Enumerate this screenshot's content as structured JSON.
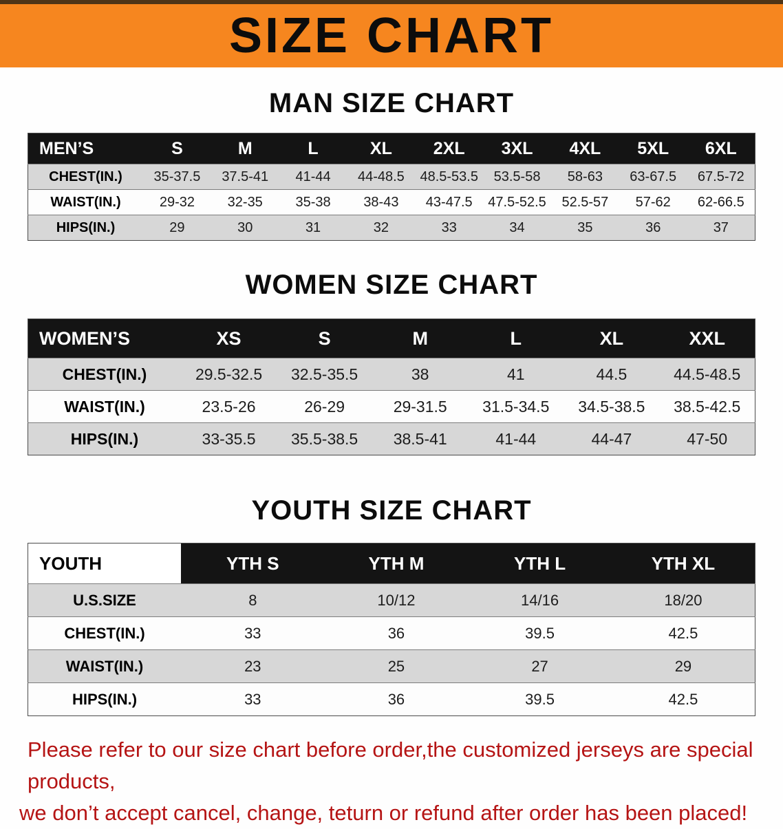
{
  "banner": {
    "title": "SIZE CHART",
    "bg_color": "#f6861f"
  },
  "sections": [
    {
      "heading": "MAN SIZE CHART",
      "table": {
        "header": [
          "MEN’S",
          "S",
          "M",
          "L",
          "XL",
          "2XL",
          "3XL",
          "4XL",
          "5XL",
          "6XL"
        ],
        "rows": [
          [
            "CHEST(IN.)",
            "35-37.5",
            "37.5-41",
            "41-44",
            "44-48.5",
            "48.5-53.5",
            "53.5-58",
            "58-63",
            "63-67.5",
            "67.5-72"
          ],
          [
            "WAIST(IN.)",
            "29-32",
            "32-35",
            "35-38",
            "38-43",
            "43-47.5",
            "47.5-52.5",
            "52.5-57",
            "57-62",
            "62-66.5"
          ],
          [
            "HIPS(IN.)",
            "29",
            "30",
            "31",
            "32",
            "33",
            "34",
            "35",
            "36",
            "37"
          ]
        ]
      }
    },
    {
      "heading": "WOMEN SIZE CHART",
      "table": {
        "header": [
          "WOMEN’S",
          "XS",
          "S",
          "M",
          "L",
          "XL",
          "XXL"
        ],
        "rows": [
          [
            "CHEST(IN.)",
            "29.5-32.5",
            "32.5-35.5",
            "38",
            "41",
            "44.5",
            "44.5-48.5"
          ],
          [
            "WAIST(IN.)",
            "23.5-26",
            "26-29",
            "29-31.5",
            "31.5-34.5",
            "34.5-38.5",
            "38.5-42.5"
          ],
          [
            "HIPS(IN.)",
            "33-35.5",
            "35.5-38.5",
            "38.5-41",
            "41-44",
            "44-47",
            "47-50"
          ]
        ]
      }
    },
    {
      "heading": "YOUTH SIZE CHART",
      "table": {
        "header": [
          "YOUTH",
          "YTH S",
          "YTH M",
          "YTH L",
          "YTH XL"
        ],
        "rows": [
          [
            "U.S.SIZE",
            "8",
            "10/12",
            "14/16",
            "18/20"
          ],
          [
            "CHEST(IN.)",
            "33",
            "36",
            "39.5",
            "42.5"
          ],
          [
            "WAIST(IN.)",
            "23",
            "25",
            "27",
            "29"
          ],
          [
            "HIPS(IN.)",
            "33",
            "36",
            "39.5",
            "42.5"
          ]
        ]
      }
    }
  ],
  "footer": {
    "line1": "Please refer to our size chart before order,the customized jerseys are special products,",
    "line2": "we don’t accept cancel, change, teturn or refund after order has been placed!",
    "color": "#b51414"
  }
}
